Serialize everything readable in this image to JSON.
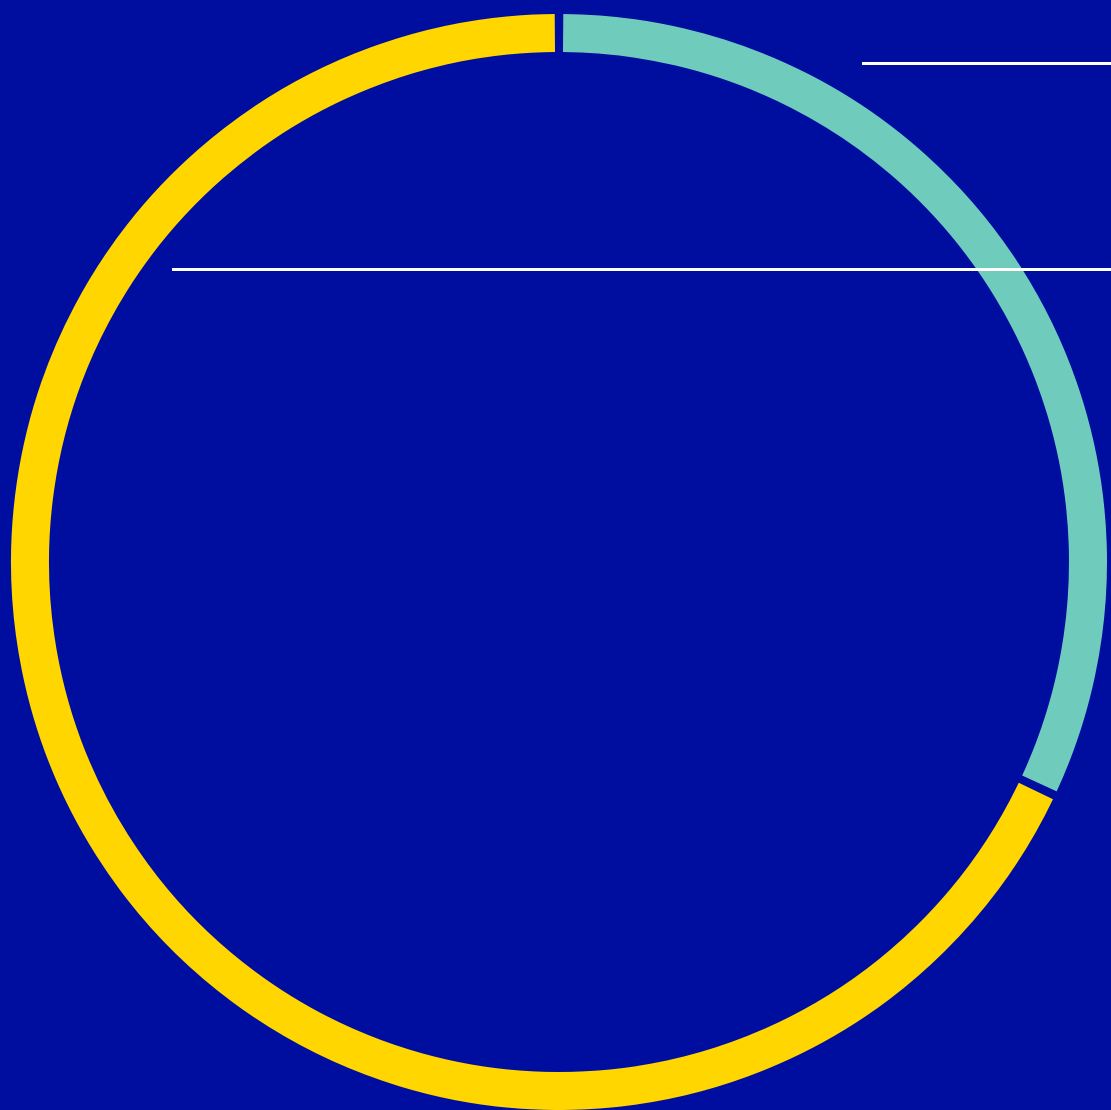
{
  "colors": {
    "background": "#000e9f",
    "leader_line": "#ffffff"
  },
  "chart_data": {
    "type": "pie",
    "style": "donut",
    "start": "top",
    "direction": "clockwise",
    "title": "",
    "slices": [
      {
        "value": 32,
        "color": "#6fccbc"
      },
      {
        "value": 68,
        "color": "#ffd600"
      }
    ],
    "annotations": [
      "leader-line",
      "leader-line"
    ]
  }
}
